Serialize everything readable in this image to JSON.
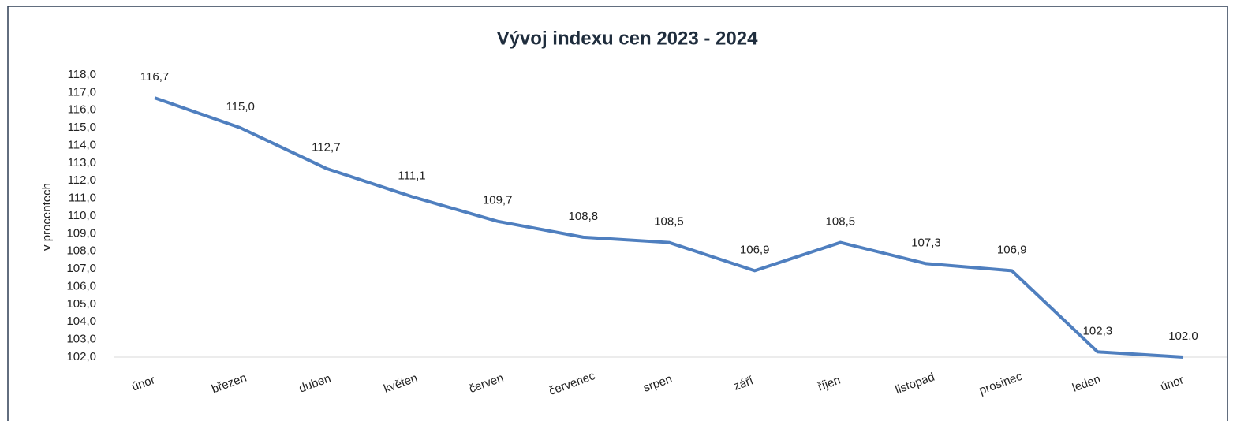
{
  "chart_data": {
    "type": "line",
    "title": "Vývoj indexu cen 2023 - 2024",
    "y_label": "v procentech",
    "categories": [
      "únor",
      "březen",
      "duben",
      "květen",
      "červen",
      "červenec",
      "srpen",
      "září",
      "říjen",
      "listopad",
      "prosinec",
      "leden",
      "únor"
    ],
    "values": [
      116.7,
      115.0,
      112.7,
      111.1,
      109.7,
      108.8,
      108.5,
      106.9,
      108.5,
      107.3,
      106.9,
      102.3,
      102.0
    ],
    "value_labels": [
      "116,7",
      "115,0",
      "112,7",
      "111,1",
      "109,7",
      "108,8",
      "108,5",
      "106,9",
      "108,5",
      "107,3",
      "106,9",
      "102,3",
      "102,0"
    ],
    "color": "#4f7fbf",
    "ylim": [
      102,
      118
    ],
    "yticks": [
      {
        "value": 102,
        "label": "102,0"
      },
      {
        "value": 103,
        "label": "103,0"
      },
      {
        "value": 104,
        "label": "104,0"
      },
      {
        "value": 105,
        "label": "105,0"
      },
      {
        "value": 106,
        "label": "106,0"
      },
      {
        "value": 107,
        "label": "107,0"
      },
      {
        "value": 108,
        "label": "108,0"
      },
      {
        "value": 109,
        "label": "109,0"
      },
      {
        "value": 110,
        "label": "110,0"
      },
      {
        "value": 111,
        "label": "111,0"
      },
      {
        "value": 112,
        "label": "112,0"
      },
      {
        "value": 113,
        "label": "113,0"
      },
      {
        "value": 114,
        "label": "114,0"
      },
      {
        "value": 115,
        "label": "115,0"
      },
      {
        "value": 116,
        "label": "116,0"
      },
      {
        "value": 117,
        "label": "117,0"
      },
      {
        "value": 118,
        "label": "118,0"
      }
    ],
    "grid": false
  }
}
